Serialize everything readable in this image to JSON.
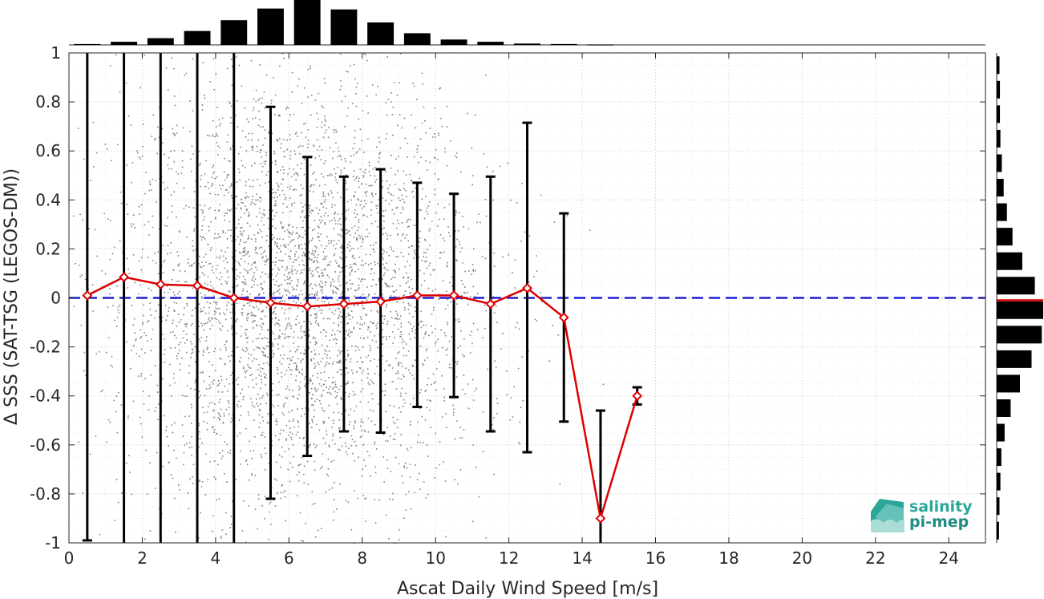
{
  "chart_data": {
    "type": "scatter",
    "xlabel": "Ascat Daily Wind Speed [m/s]",
    "ylabel": "Δ SSS (SAT-TSG (LEGOS-DM))",
    "xlim": [
      0,
      25
    ],
    "ylim": [
      -1,
      1
    ],
    "xticks": [
      0,
      2,
      4,
      6,
      8,
      10,
      12,
      14,
      16,
      18,
      20,
      22,
      24
    ],
    "yticks": [
      1,
      0.8,
      0.6,
      0.4,
      0.2,
      0,
      -0.2,
      -0.4,
      -0.6,
      -0.8,
      -1
    ],
    "ytick_labels": [
      "1",
      "0.8",
      "0.6",
      "0.4",
      "0.2",
      "0",
      "-0.2",
      "-0.4",
      "-0.6",
      "-0.8",
      "-1"
    ],
    "grid": true,
    "reference_line": {
      "y": 0,
      "color": "#1f1fd6",
      "style": "dashed"
    },
    "binned_mean": {
      "color": "#dd0000",
      "x": [
        0.5,
        1.5,
        2.5,
        3.5,
        4.5,
        5.5,
        6.5,
        7.5,
        8.5,
        9.5,
        10.5,
        11.5,
        12.5,
        13.5,
        14.5,
        15.5
      ],
      "mean": [
        0.01,
        0.085,
        0.055,
        0.05,
        0.0,
        -0.02,
        -0.035,
        -0.025,
        -0.015,
        0.01,
        0.01,
        -0.025,
        0.04,
        -0.08,
        -0.9,
        -0.4
      ],
      "err_low": [
        -0.99,
        -1.0,
        -1.0,
        -1.0,
        -1.0,
        -0.82,
        -0.645,
        -0.545,
        -0.55,
        -0.445,
        -0.405,
        -0.545,
        -0.63,
        -0.505,
        -1.0,
        -0.435
      ],
      "err_high": [
        1.0,
        1.0,
        1.0,
        1.0,
        1.0,
        0.78,
        0.575,
        0.495,
        0.525,
        0.47,
        0.425,
        0.495,
        0.715,
        0.345,
        -0.46,
        -0.365
      ]
    },
    "scatter_color": "#808080",
    "top_histogram": {
      "bin_centers": [
        0.5,
        1.5,
        2.5,
        3.5,
        4.5,
        5.5,
        6.5,
        7.5,
        8.5,
        9.5,
        10.5,
        11.5,
        12.5,
        13.5,
        14.5,
        15.5
      ],
      "relative_counts": [
        0.02,
        0.07,
        0.15,
        0.31,
        0.55,
        0.81,
        1.0,
        0.79,
        0.5,
        0.26,
        0.12,
        0.07,
        0.03,
        0.02,
        0.01,
        0.0
      ]
    },
    "right_histogram": {
      "bin_centers": [
        0.95,
        0.85,
        0.75,
        0.65,
        0.55,
        0.45,
        0.35,
        0.25,
        0.15,
        0.05,
        -0.05,
        -0.15,
        -0.25,
        -0.35,
        -0.45,
        -0.55,
        -0.65,
        -0.75,
        -0.85,
        -0.95
      ],
      "relative_counts": [
        0.06,
        0.07,
        0.07,
        0.08,
        0.11,
        0.15,
        0.22,
        0.34,
        0.55,
        0.82,
        1.0,
        0.97,
        0.75,
        0.5,
        0.3,
        0.17,
        0.1,
        0.08,
        0.06,
        0.05
      ],
      "mean_marker": -0.01
    }
  },
  "logo": {
    "line1": "salinity",
    "line2": "pi-mep"
  }
}
